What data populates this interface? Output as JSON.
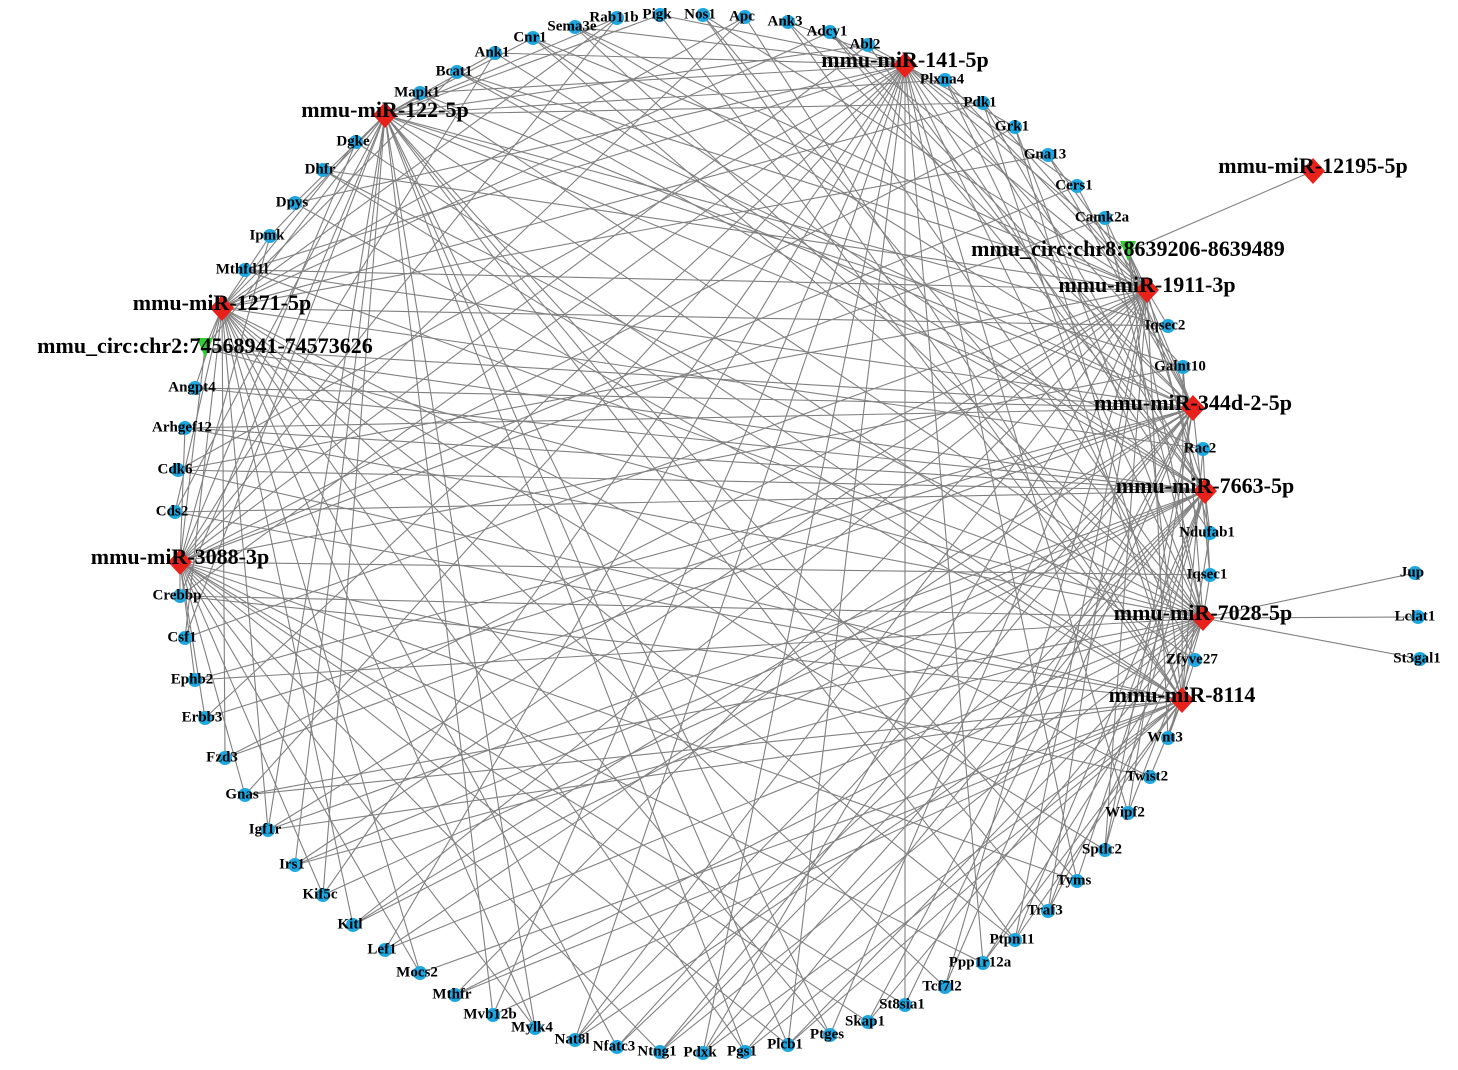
{
  "mirnas": [
    "mmu-miR-141-5p",
    "mmu-miR-122-5p",
    "mmu-miR-12195-5p",
    "mmu-miR-1911-3p",
    "mmu-miR-1271-5p",
    "mmu-miR-344d-2-5p",
    "mmu-miR-7663-5p",
    "mmu-miR-3088-3p",
    "mmu-miR-7028-5p",
    "mmu-miR-8114"
  ],
  "circrnas": [
    "mmu_circ:chr8:8639206-8639489",
    "mmu_circ:chr2:74568941-74573626"
  ],
  "genes": [
    "Sema3e",
    "Rab11b",
    "Pigk",
    "Nos1",
    "Apc",
    "Ank3",
    "Adcy1",
    "Abl2",
    "Plxna4",
    "Pdk1",
    "Grk1",
    "Gna13",
    "Cers1",
    "Camk2a",
    "Iqsec2",
    "Galnt10",
    "Rac2",
    "Ndufab1",
    "Iqsec1",
    "Jup",
    "Lclat1",
    "St3gal1",
    "Zfyve27",
    "Wnt3",
    "Twist2",
    "Wipf2",
    "Sptlc2",
    "Tyms",
    "Traf3",
    "Ptpn11",
    "Ppp1r12a",
    "Tcf7l2",
    "St8sia1",
    "Skap1",
    "Ptges",
    "Plcb1",
    "Pgs1",
    "Pdxk",
    "Ntng1",
    "Nfatc3",
    "Nat8l",
    "Mylk4",
    "Mvb12b",
    "Mthfr",
    "Mocs2",
    "Lef1",
    "Kitl",
    "Kif5c",
    "Irs1",
    "Igf1r",
    "Gnas",
    "Fzd3",
    "Erbb3",
    "Ephb2",
    "Csf1",
    "Crebbp",
    "Cds2",
    "Cdk6",
    "Arhgef12",
    "Angpt4",
    "Mthfd1l",
    "Ipmk",
    "Dpys",
    "Dhfr",
    "Dgke",
    "Mapk1",
    "Bcat1",
    "Ank1",
    "Cnr1"
  ]
}
